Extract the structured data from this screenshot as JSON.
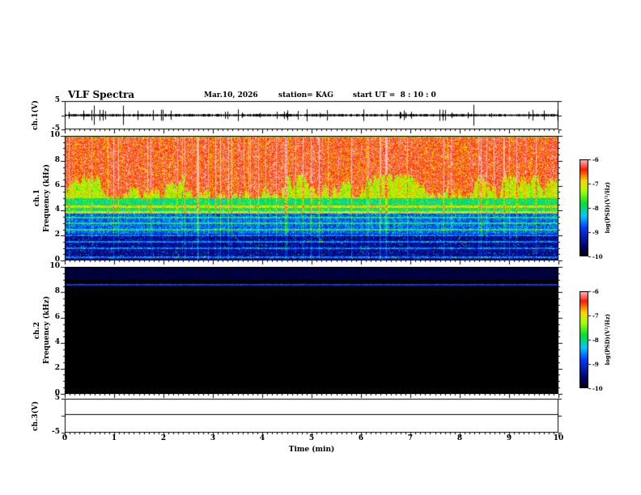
{
  "header": {
    "title": "VLF Spectra",
    "date": "Mar.10, 2026",
    "station": "station= KAG",
    "start_ut": "start UT =  8 : 10 : 0"
  },
  "xaxis": {
    "label": "Time (min)",
    "ticks": [
      "0",
      "1",
      "2",
      "3",
      "4",
      "5",
      "6",
      "7",
      "8",
      "9",
      "10"
    ]
  },
  "panels": {
    "ch1v": {
      "label": "ch.1(V)",
      "yticks": [
        "5",
        "-5"
      ],
      "yvals": [
        5,
        -5
      ]
    },
    "ch1spec": {
      "ch": "ch.1",
      "axis": "Frequency (kHz)",
      "yticks": [
        "0",
        "2",
        "4",
        "6",
        "8",
        "10"
      ],
      "yvals": [
        0,
        2,
        4,
        6,
        8,
        10
      ]
    },
    "ch2spec": {
      "ch": "ch.2",
      "axis": "Frequency (kHz)",
      "yticks": [
        "0",
        "2",
        "4",
        "6",
        "8",
        "10"
      ],
      "yvals": [
        0,
        2,
        4,
        6,
        8,
        10
      ]
    },
    "ch3v": {
      "label": "ch.3(V)",
      "yticks": [
        "5",
        "-5"
      ],
      "yvals": [
        5,
        -5
      ]
    }
  },
  "colorbar": {
    "label": "log(PSD)(V²/Hz)",
    "ticks": [
      "-6",
      "-7",
      "-8",
      "-9",
      "-10"
    ]
  },
  "chart_data": [
    {
      "type": "line",
      "name": "ch.1(V) waveform",
      "xlabel": "Time (min)",
      "xlim": [
        0,
        10
      ],
      "ylim": [
        -5,
        5
      ],
      "description": "dense noisy trace centered at 0 V with frequent narrow spikes of roughly ±1 to ±3 V over the whole 10 minutes"
    },
    {
      "type": "heatmap",
      "name": "ch.1 spectrogram",
      "xlabel": "Time (min)",
      "ylabel": "Frequency (kHz)",
      "xlim": [
        0,
        10
      ],
      "ylim": [
        0,
        10
      ],
      "zlabel": "log(PSD)(V²/Hz)",
      "zlim": [
        -10,
        -6
      ],
      "bands": [
        {
          "f_range": [
            6.0,
            10
          ],
          "psd_log": -6.2,
          "appearance": "saturated red with white vertical striations"
        },
        {
          "f_range": [
            5.0,
            6.0
          ],
          "psd_log": -7.0,
          "appearance": "yellow-green transition, ragged lower edge of red region"
        },
        {
          "f_range": [
            3.8,
            5.0
          ],
          "psd_log": -7.6,
          "appearance": "green with vertical green streaks"
        },
        {
          "f_range": [
            2.2,
            3.8
          ],
          "psd_log": -8.6,
          "appearance": "blue and cyan with green horizontal lines"
        },
        {
          "f_range": [
            0,
            2.2
          ],
          "psd_log": -9.5,
          "appearance": "dark blue to black with sparse speckle"
        }
      ],
      "horizontal_lines_khz": [
        0.3,
        1.0,
        1.5,
        2.05,
        2.5,
        3.0,
        3.45,
        3.9,
        4.35
      ],
      "vertical_striations": "quasi-periodic bright columns every few seconds for the entire record"
    },
    {
      "type": "heatmap",
      "name": "ch.2 spectrogram",
      "xlabel": "Time (min)",
      "ylabel": "Frequency (kHz)",
      "xlim": [
        0,
        10
      ],
      "ylim": [
        0,
        10
      ],
      "zlabel": "log(PSD)(V²/Hz)",
      "zlim": [
        -10,
        -6
      ],
      "bands": [
        {
          "f_range": [
            0,
            10
          ],
          "psd_log": -10,
          "appearance": "uniform black, no signal"
        },
        {
          "f_range": [
            8.55,
            8.75
          ],
          "psd_log": -8.6,
          "appearance": "single faint blue horizontal line"
        },
        {
          "f_range": [
            9.0,
            10
          ],
          "psd_log": -9.7,
          "appearance": "very faint dark-blue noise near top edge"
        }
      ]
    },
    {
      "type": "line",
      "name": "ch.3(V) waveform",
      "xlabel": "Time (min)",
      "xlim": [
        0,
        10
      ],
      "ylim": [
        -5,
        5
      ],
      "description": "flat line at 0 V for the entire record"
    }
  ]
}
